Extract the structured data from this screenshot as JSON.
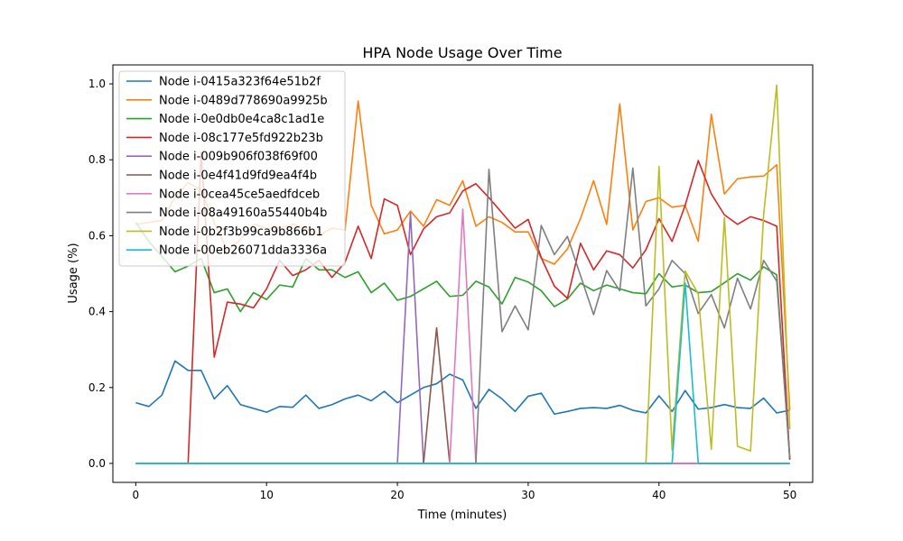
{
  "chart_data": {
    "type": "line",
    "title": "HPA Node Usage Over Time",
    "xlabel": "Time (minutes)",
    "ylabel": "Usage (%)",
    "xlim": [
      -1.75,
      51.75
    ],
    "ylim": [
      -0.05,
      1.05
    ],
    "xticks": [
      0,
      10,
      20,
      30,
      40,
      50
    ],
    "yticks": [
      0.0,
      0.2,
      0.4,
      0.6,
      0.8,
      1.0
    ],
    "xtick_labels": [
      "0",
      "10",
      "20",
      "30",
      "40",
      "50"
    ],
    "ytick_labels": [
      "0.0",
      "0.2",
      "0.4",
      "0.6",
      "0.8",
      "1.0"
    ],
    "grid": false,
    "legend_position": "top-left",
    "series": [
      {
        "name": "Node i-0415a323f64e51b2f",
        "color": "#1f77b4",
        "values": [
          0.16,
          0.15,
          0.18,
          0.27,
          0.245,
          0.245,
          0.17,
          0.205,
          0.155,
          0.145,
          0.135,
          0.15,
          0.148,
          0.18,
          0.145,
          0.155,
          0.17,
          0.18,
          0.165,
          0.19,
          0.16,
          0.18,
          0.2,
          0.21,
          0.235,
          0.22,
          0.145,
          0.195,
          0.17,
          0.137,
          0.177,
          0.185,
          0.13,
          0.137,
          0.145,
          0.147,
          0.145,
          0.153,
          0.14,
          0.133,
          0.178,
          0.137,
          0.192,
          0.143,
          0.147,
          0.155,
          0.147,
          0.145,
          0.172,
          0.133,
          0.14
        ]
      },
      {
        "name": "Node i-0489d778690a9925b",
        "color": "#ff7f0e",
        "values": [
          0.63,
          0.635,
          0.64,
          0.7,
          0.74,
          0.72,
          0.635,
          0.56,
          0.59,
          0.63,
          0.62,
          0.62,
          0.63,
          0.62,
          0.6,
          0.62,
          0.615,
          0.955,
          0.68,
          0.605,
          0.615,
          0.665,
          0.625,
          0.695,
          0.68,
          0.745,
          0.625,
          0.65,
          0.635,
          0.61,
          0.61,
          0.54,
          0.525,
          0.565,
          0.645,
          0.745,
          0.63,
          0.947,
          0.615,
          0.69,
          0.7,
          0.675,
          0.68,
          0.585,
          0.92,
          0.71,
          0.75,
          0.755,
          0.757,
          0.787,
          0.14
        ]
      },
      {
        "name": "Node i-0e0db0e4ca8c1ad1e",
        "color": "#2ca02c",
        "values": [
          0.635,
          0.585,
          0.545,
          0.505,
          0.52,
          0.54,
          0.45,
          0.46,
          0.4,
          0.45,
          0.432,
          0.47,
          0.465,
          0.54,
          0.51,
          0.51,
          0.49,
          0.505,
          0.45,
          0.475,
          0.43,
          0.44,
          0.46,
          0.48,
          0.44,
          0.443,
          0.48,
          0.465,
          0.42,
          0.49,
          0.478,
          0.455,
          0.413,
          0.433,
          0.475,
          0.455,
          0.47,
          0.46,
          0.45,
          0.447,
          0.5,
          0.465,
          0.47,
          0.45,
          0.453,
          0.476,
          0.5,
          0.483,
          0.518,
          0.497,
          0.01
        ]
      },
      {
        "name": "Node i-08c177e5fd922b23b",
        "color": "#d62728",
        "values": [
          0.0,
          0.0,
          0.0,
          0.0,
          0.0,
          0.82,
          0.28,
          0.425,
          0.42,
          0.41,
          0.46,
          0.535,
          0.495,
          0.51,
          0.535,
          0.49,
          0.53,
          0.625,
          0.54,
          0.697,
          0.68,
          0.55,
          0.618,
          0.65,
          0.66,
          0.718,
          0.737,
          0.7,
          0.66,
          0.62,
          0.643,
          0.542,
          0.467,
          0.435,
          0.58,
          0.51,
          0.56,
          0.55,
          0.515,
          0.563,
          0.645,
          0.585,
          0.68,
          0.798,
          0.71,
          0.655,
          0.63,
          0.65,
          0.64,
          0.625,
          0.01
        ]
      },
      {
        "name": "Node i-009b906f038f69f00",
        "color": "#9467bd",
        "values": [
          0,
          0,
          0,
          0,
          0,
          0,
          0,
          0,
          0,
          0,
          0,
          0,
          0,
          0,
          0,
          0,
          0,
          0,
          0,
          0,
          0.0,
          0.66,
          0.0,
          0,
          0,
          0,
          0,
          0,
          0,
          0,
          0,
          0,
          0,
          0,
          0,
          0,
          0,
          0,
          0,
          0,
          0,
          0,
          0,
          0,
          0,
          0,
          0,
          0,
          0,
          0,
          0
        ]
      },
      {
        "name": "Node i-0e4f41d9fd9ea4f4b",
        "color": "#8c564b",
        "values": [
          0,
          0,
          0,
          0,
          0,
          0,
          0,
          0,
          0,
          0,
          0,
          0,
          0,
          0,
          0,
          0,
          0,
          0,
          0,
          0,
          0,
          0,
          0.0,
          0.357,
          0.0,
          0,
          0,
          0,
          0,
          0,
          0,
          0,
          0,
          0,
          0,
          0,
          0,
          0,
          0,
          0,
          0,
          0,
          0,
          0,
          0,
          0,
          0,
          0,
          0,
          0,
          0
        ]
      },
      {
        "name": "Node i-0cea45ce5aedfdceb",
        "color": "#e377c2",
        "values": [
          0,
          0,
          0,
          0,
          0,
          0,
          0,
          0,
          0,
          0,
          0,
          0,
          0,
          0,
          0,
          0,
          0,
          0,
          0,
          0,
          0,
          0,
          0,
          0,
          0.0,
          0.67,
          0.0,
          0,
          0,
          0,
          0,
          0,
          0,
          0,
          0,
          0,
          0,
          0,
          0,
          0,
          0,
          0,
          0,
          0,
          0,
          0,
          0,
          0,
          0,
          0,
          0
        ]
      },
      {
        "name": "Node i-08a49160a55440b4b",
        "color": "#7f7f7f",
        "values": [
          0,
          0,
          0,
          0,
          0,
          0,
          0,
          0,
          0,
          0,
          0,
          0,
          0,
          0,
          0,
          0,
          0,
          0,
          0,
          0,
          0,
          0,
          0,
          0,
          0,
          0,
          0.0,
          0.775,
          0.347,
          0.415,
          0.352,
          0.627,
          0.55,
          0.598,
          0.495,
          0.392,
          0.508,
          0.455,
          0.778,
          0.415,
          0.46,
          0.535,
          0.5,
          0.395,
          0.445,
          0.357,
          0.488,
          0.407,
          0.535,
          0.48,
          0.015
        ]
      },
      {
        "name": "Node i-0b2f3b99ca9b866b1",
        "color": "#bcbd22",
        "values": [
          0,
          0,
          0,
          0,
          0,
          0,
          0,
          0,
          0,
          0,
          0,
          0,
          0,
          0,
          0,
          0,
          0,
          0,
          0,
          0,
          0,
          0,
          0,
          0,
          0,
          0,
          0,
          0,
          0,
          0,
          0,
          0,
          0,
          0,
          0,
          0,
          0,
          0,
          0,
          0.0,
          0.783,
          0.035,
          0.507,
          0.447,
          0.037,
          0.648,
          0.045,
          0.033,
          0.655,
          0.997,
          0.09
        ]
      },
      {
        "name": "Node i-00eb26071dda3336a",
        "color": "#17becf",
        "values": [
          0,
          0,
          0,
          0,
          0,
          0,
          0,
          0,
          0,
          0,
          0,
          0,
          0,
          0,
          0,
          0,
          0,
          0,
          0,
          0,
          0,
          0,
          0,
          0,
          0,
          0,
          0,
          0,
          0,
          0,
          0,
          0,
          0,
          0,
          0,
          0,
          0,
          0,
          0,
          0,
          0,
          0.0,
          0.475,
          0.0,
          0,
          0,
          0,
          0,
          0,
          0,
          0
        ]
      }
    ]
  }
}
